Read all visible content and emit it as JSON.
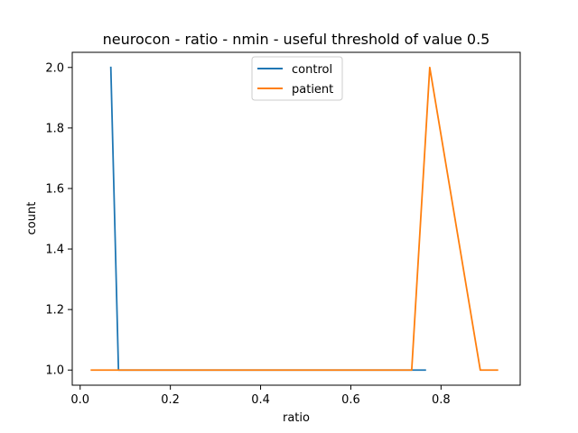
{
  "chart_data": {
    "type": "line",
    "title": "neurocon - ratio - nmin - useful threshold of value 0.5",
    "xlabel": "ratio",
    "ylabel": "count",
    "xlim": [
      -0.0175,
      0.9755
    ],
    "ylim": [
      0.95,
      2.05
    ],
    "xticks": [
      0.0,
      0.2,
      0.4,
      0.6,
      0.8
    ],
    "xtick_labels": [
      "0.0",
      "0.2",
      "0.4",
      "0.6",
      "0.8"
    ],
    "yticks": [
      1.0,
      1.2,
      1.4,
      1.6,
      1.8,
      2.0
    ],
    "ytick_labels": [
      "1.0",
      "1.2",
      "1.4",
      "1.6",
      "1.8",
      "2.0"
    ],
    "grid": false,
    "legend_position": "top-center",
    "series": [
      {
        "name": "control",
        "color": "#1f77b4",
        "x": [
          0.068,
          0.085,
          0.765
        ],
        "y": [
          2.0,
          1.0,
          1.0
        ]
      },
      {
        "name": "patient",
        "color": "#ff7f0e",
        "x": [
          0.025,
          0.735,
          0.775,
          0.887,
          0.925
        ],
        "y": [
          1.0,
          1.0,
          2.0,
          1.0,
          1.0
        ]
      }
    ]
  }
}
